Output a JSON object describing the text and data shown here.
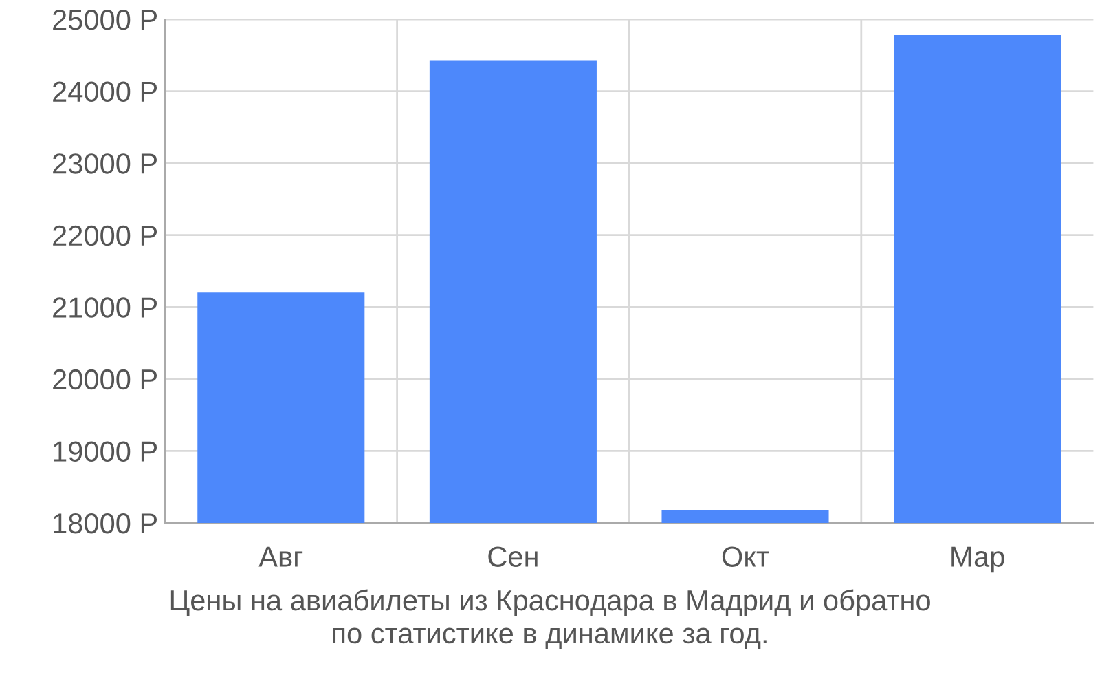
{
  "chart_data": {
    "type": "bar",
    "categories": [
      "Авг",
      "Сен",
      "Окт",
      "Мар"
    ],
    "values": [
      21200,
      24430,
      18180,
      24780
    ],
    "color": "#4d88fb",
    "ylim": [
      18000,
      25000
    ],
    "yticks": [
      {
        "value": 18000,
        "label": "18000 Р"
      },
      {
        "value": 19000,
        "label": "19000 Р"
      },
      {
        "value": 20000,
        "label": "20000 Р"
      },
      {
        "value": 21000,
        "label": "21000 Р"
      },
      {
        "value": 22000,
        "label": "22000 Р"
      },
      {
        "value": 23000,
        "label": "23000 Р"
      },
      {
        "value": 24000,
        "label": "24000 Р"
      },
      {
        "value": 25000,
        "label": "25000 Р"
      }
    ],
    "grid": true,
    "annotations": [
      "Цены на авиабилеты из Краснодара в Мадрид и обратно\nпо статистике в динамике за год."
    ]
  }
}
